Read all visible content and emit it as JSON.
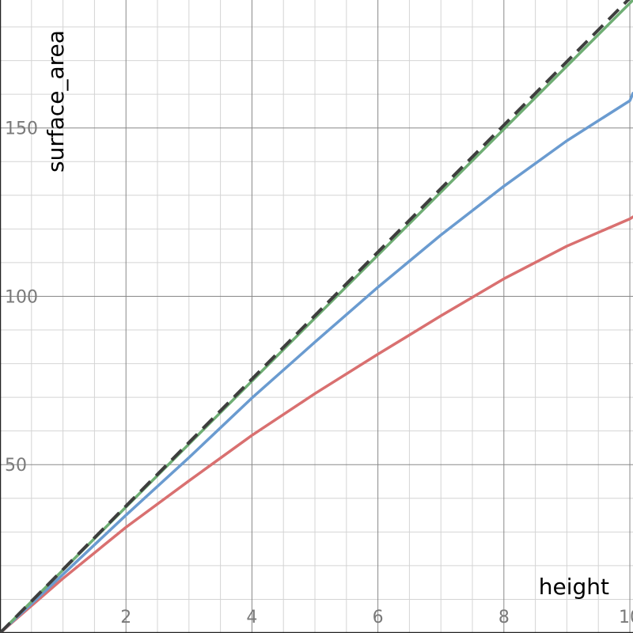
{
  "chart_data": {
    "type": "line",
    "xlabel": "height",
    "ylabel": "surface_area",
    "xlim": [
      0,
      10.05
    ],
    "ylim": [
      0,
      188
    ],
    "grid": true,
    "x_ticks": [
      2,
      4,
      6,
      8,
      10
    ],
    "x_tick_labels": [
      "2",
      "4",
      "6",
      "8",
      "10"
    ],
    "y_ticks": [
      50,
      100,
      150
    ],
    "y_tick_labels": [
      "50",
      "100",
      "150"
    ],
    "series": [
      {
        "color": "#d97070",
        "dash": false,
        "x": [
          0,
          1,
          2,
          3,
          4,
          5,
          6,
          7,
          8,
          9,
          10,
          10.05
        ],
        "y": [
          0,
          16.2,
          31.4,
          45.2,
          58.7,
          71.1,
          82.8,
          94.2,
          105.2,
          114.9,
          123.0,
          123.6
        ]
      },
      {
        "color": "#6a9bd0",
        "dash": false,
        "x": [
          0,
          1,
          2,
          3,
          4,
          5,
          6,
          7,
          8,
          9,
          10,
          10.05
        ],
        "y": [
          0,
          17.4,
          35.0,
          52.1,
          69.8,
          86.4,
          102.7,
          118.2,
          132.7,
          146.2,
          158.1,
          160.3
        ]
      },
      {
        "color": "#6fae74",
        "dash": false,
        "x": [
          0,
          10.05
        ],
        "y": [
          0,
          188.0
        ]
      },
      {
        "color": "#3e3e3e",
        "dash": true,
        "x": [
          0,
          10.05
        ],
        "y": [
          0,
          189.5
        ]
      }
    ]
  }
}
